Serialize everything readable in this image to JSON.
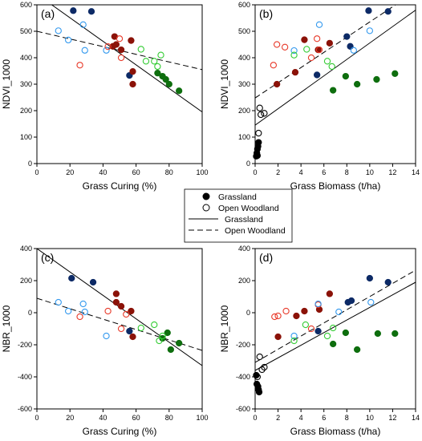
{
  "colors": {
    "black": "#000000",
    "blue": "#3399ee",
    "red": "#e83a2a",
    "green": "#33cc33",
    "darkblue": "#0d2a66",
    "darkred": "#8b1208",
    "darkgreen": "#0e6e0e"
  },
  "legend": {
    "entries": [
      {
        "label": "Grassland",
        "marker": "filled-circle"
      },
      {
        "label": "Open Woodland",
        "marker": "open-circle"
      },
      {
        "label": "Grassland",
        "marker": "solid-line"
      },
      {
        "label": "Open Woodland",
        "marker": "dashed-line"
      }
    ]
  },
  "chart_data": [
    {
      "type": "scatter",
      "panel_label": "(a)",
      "xlabel": "Grass Curing (%)",
      "ylabel": "NDVI_1000",
      "xlim": [
        0,
        100
      ],
      "ylim": [
        0,
        600
      ],
      "xticks": [
        0,
        20,
        40,
        60,
        80,
        100
      ],
      "yticks": [
        0,
        100,
        200,
        300,
        400,
        500,
        600
      ],
      "points": [
        {
          "x": 22,
          "y": 578,
          "color": "darkblue",
          "filled": true
        },
        {
          "x": 33,
          "y": 575,
          "color": "darkblue",
          "filled": true
        },
        {
          "x": 47,
          "y": 480,
          "color": "darkred",
          "filled": true
        },
        {
          "x": 46,
          "y": 443,
          "color": "darkred",
          "filled": true
        },
        {
          "x": 48,
          "y": 450,
          "color": "darkred",
          "filled": true
        },
        {
          "x": 51,
          "y": 430,
          "color": "darkred",
          "filled": true
        },
        {
          "x": 57,
          "y": 465,
          "color": "darkred",
          "filled": true
        },
        {
          "x": 56,
          "y": 333,
          "color": "darkblue",
          "filled": true
        },
        {
          "x": 58,
          "y": 348,
          "color": "darkred",
          "filled": true
        },
        {
          "x": 58,
          "y": 300,
          "color": "darkred",
          "filled": true
        },
        {
          "x": 73,
          "y": 342,
          "color": "darkgreen",
          "filled": true
        },
        {
          "x": 76,
          "y": 330,
          "color": "darkgreen",
          "filled": true
        },
        {
          "x": 78,
          "y": 318,
          "color": "darkgreen",
          "filled": true
        },
        {
          "x": 80,
          "y": 300,
          "color": "darkgreen",
          "filled": true
        },
        {
          "x": 86,
          "y": 275,
          "color": "darkgreen",
          "filled": true
        },
        {
          "x": 13,
          "y": 502,
          "color": "blue",
          "filled": false
        },
        {
          "x": 19,
          "y": 467,
          "color": "blue",
          "filled": false
        },
        {
          "x": 28,
          "y": 525,
          "color": "blue",
          "filled": false
        },
        {
          "x": 29,
          "y": 428,
          "color": "blue",
          "filled": false
        },
        {
          "x": 42,
          "y": 428,
          "color": "blue",
          "filled": false
        },
        {
          "x": 26,
          "y": 372,
          "color": "red",
          "filled": false
        },
        {
          "x": 43,
          "y": 442,
          "color": "red",
          "filled": false
        },
        {
          "x": 50,
          "y": 472,
          "color": "red",
          "filled": false
        },
        {
          "x": 51,
          "y": 400,
          "color": "red",
          "filled": false
        },
        {
          "x": 63,
          "y": 432,
          "color": "green",
          "filled": false
        },
        {
          "x": 66,
          "y": 387,
          "color": "green",
          "filled": false
        },
        {
          "x": 71,
          "y": 387,
          "color": "green",
          "filled": false
        },
        {
          "x": 73,
          "y": 367,
          "color": "green",
          "filled": false
        },
        {
          "x": 75,
          "y": 410,
          "color": "green",
          "filled": false
        }
      ],
      "lines": [
        {
          "style": "solid",
          "x": [
            0,
            100
          ],
          "y": [
            640,
            195
          ]
        },
        {
          "style": "dashed",
          "x": [
            0,
            100
          ],
          "y": [
            500,
            355
          ]
        }
      ]
    },
    {
      "type": "scatter",
      "panel_label": "(b)",
      "xlabel": "Grass Biomass (t/ha)",
      "ylabel": "NDVI_1000",
      "xlim": [
        0,
        14
      ],
      "ylim": [
        0,
        600
      ],
      "xticks": [
        0,
        2,
        4,
        6,
        8,
        10,
        12,
        14
      ],
      "yticks": [
        0,
        100,
        200,
        300,
        400,
        500,
        600
      ],
      "points": [
        {
          "x": 0.1,
          "y": 28,
          "color": "black",
          "filled": true
        },
        {
          "x": 0.15,
          "y": 40,
          "color": "black",
          "filled": true
        },
        {
          "x": 0.2,
          "y": 55,
          "color": "black",
          "filled": true
        },
        {
          "x": 0.25,
          "y": 65,
          "color": "black",
          "filled": true
        },
        {
          "x": 0.3,
          "y": 80,
          "color": "black",
          "filled": true
        },
        {
          "x": 0.2,
          "y": 30,
          "color": "black",
          "filled": true
        },
        {
          "x": 0.3,
          "y": 115,
          "color": "black",
          "filled": false
        },
        {
          "x": 0.5,
          "y": 185,
          "color": "black",
          "filled": false
        },
        {
          "x": 0.8,
          "y": 190,
          "color": "black",
          "filled": false
        },
        {
          "x": 0.4,
          "y": 210,
          "color": "black",
          "filled": false
        },
        {
          "x": 1.9,
          "y": 300,
          "color": "darkred",
          "filled": true
        },
        {
          "x": 3.5,
          "y": 345,
          "color": "darkred",
          "filled": true
        },
        {
          "x": 4.3,
          "y": 468,
          "color": "darkred",
          "filled": true
        },
        {
          "x": 5.5,
          "y": 430,
          "color": "darkred",
          "filled": true
        },
        {
          "x": 6.5,
          "y": 455,
          "color": "darkred",
          "filled": true
        },
        {
          "x": 5.4,
          "y": 335,
          "color": "darkblue",
          "filled": true
        },
        {
          "x": 8.0,
          "y": 480,
          "color": "darkblue",
          "filled": true
        },
        {
          "x": 8.3,
          "y": 443,
          "color": "darkblue",
          "filled": true
        },
        {
          "x": 9.9,
          "y": 578,
          "color": "darkblue",
          "filled": true
        },
        {
          "x": 11.6,
          "y": 575,
          "color": "darkblue",
          "filled": true
        },
        {
          "x": 6.8,
          "y": 277,
          "color": "darkgreen",
          "filled": true
        },
        {
          "x": 7.9,
          "y": 330,
          "color": "darkgreen",
          "filled": true
        },
        {
          "x": 8.9,
          "y": 300,
          "color": "darkgreen",
          "filled": true
        },
        {
          "x": 10.6,
          "y": 318,
          "color": "darkgreen",
          "filled": true
        },
        {
          "x": 12.2,
          "y": 340,
          "color": "darkgreen",
          "filled": true
        },
        {
          "x": 1.6,
          "y": 372,
          "color": "red",
          "filled": false
        },
        {
          "x": 1.9,
          "y": 450,
          "color": "red",
          "filled": false
        },
        {
          "x": 2.6,
          "y": 440,
          "color": "red",
          "filled": false
        },
        {
          "x": 4.9,
          "y": 400,
          "color": "red",
          "filled": false
        },
        {
          "x": 5.6,
          "y": 430,
          "color": "red",
          "filled": false
        },
        {
          "x": 5.4,
          "y": 472,
          "color": "red",
          "filled": false
        },
        {
          "x": 3.4,
          "y": 427,
          "color": "blue",
          "filled": false
        },
        {
          "x": 5.6,
          "y": 525,
          "color": "blue",
          "filled": false
        },
        {
          "x": 8.6,
          "y": 428,
          "color": "blue",
          "filled": false
        },
        {
          "x": 10.0,
          "y": 502,
          "color": "blue",
          "filled": false
        },
        {
          "x": 3.4,
          "y": 410,
          "color": "green",
          "filled": false
        },
        {
          "x": 4.5,
          "y": 432,
          "color": "green",
          "filled": false
        },
        {
          "x": 6.3,
          "y": 387,
          "color": "green",
          "filled": false
        },
        {
          "x": 6.7,
          "y": 367,
          "color": "green",
          "filled": false
        }
      ],
      "lines": [
        {
          "style": "solid",
          "x": [
            0,
            14
          ],
          "y": [
            145,
            580
          ]
        },
        {
          "style": "dashed",
          "x": [
            0,
            14
          ],
          "y": [
            248,
            650
          ]
        }
      ]
    },
    {
      "type": "scatter",
      "panel_label": "(c)",
      "xlabel": "Grass Curing (%)",
      "ylabel": "NBR_1000",
      "xlim": [
        0,
        100
      ],
      "ylim": [
        -600,
        400
      ],
      "xticks": [
        0,
        20,
        40,
        60,
        80,
        100
      ],
      "yticks": [
        -600,
        -400,
        -200,
        0,
        200,
        400
      ],
      "points": [
        {
          "x": 21,
          "y": 215,
          "color": "darkblue",
          "filled": true
        },
        {
          "x": 34,
          "y": 190,
          "color": "darkblue",
          "filled": true
        },
        {
          "x": 48,
          "y": 118,
          "color": "darkred",
          "filled": true
        },
        {
          "x": 48,
          "y": 65,
          "color": "darkred",
          "filled": true
        },
        {
          "x": 51,
          "y": 40,
          "color": "darkred",
          "filled": true
        },
        {
          "x": 57,
          "y": 10,
          "color": "darkred",
          "filled": true
        },
        {
          "x": 56,
          "y": -115,
          "color": "darkblue",
          "filled": true
        },
        {
          "x": 58,
          "y": -150,
          "color": "darkred",
          "filled": true
        },
        {
          "x": 76,
          "y": -160,
          "color": "darkgreen",
          "filled": true
        },
        {
          "x": 79,
          "y": -125,
          "color": "darkgreen",
          "filled": true
        },
        {
          "x": 81,
          "y": -230,
          "color": "darkgreen",
          "filled": true
        },
        {
          "x": 86,
          "y": -190,
          "color": "darkgreen",
          "filled": true
        },
        {
          "x": 13,
          "y": 65,
          "color": "blue",
          "filled": false
        },
        {
          "x": 19,
          "y": 10,
          "color": "blue",
          "filled": false
        },
        {
          "x": 28,
          "y": 55,
          "color": "blue",
          "filled": false
        },
        {
          "x": 29,
          "y": 5,
          "color": "blue",
          "filled": false
        },
        {
          "x": 42,
          "y": -145,
          "color": "blue",
          "filled": false
        },
        {
          "x": 26,
          "y": -25,
          "color": "red",
          "filled": false
        },
        {
          "x": 43,
          "y": 10,
          "color": "red",
          "filled": false
        },
        {
          "x": 51,
          "y": -100,
          "color": "red",
          "filled": false
        },
        {
          "x": 54,
          "y": -10,
          "color": "red",
          "filled": false
        },
        {
          "x": 63,
          "y": -95,
          "color": "green",
          "filled": false
        },
        {
          "x": 71,
          "y": -75,
          "color": "green",
          "filled": false
        },
        {
          "x": 74,
          "y": -175,
          "color": "green",
          "filled": false
        },
        {
          "x": 76,
          "y": -145,
          "color": "green",
          "filled": false
        }
      ],
      "lines": [
        {
          "style": "solid",
          "x": [
            0,
            100
          ],
          "y": [
            400,
            -330
          ]
        },
        {
          "style": "dashed",
          "x": [
            0,
            100
          ],
          "y": [
            90,
            -235
          ]
        }
      ]
    },
    {
      "type": "scatter",
      "panel_label": "(d)",
      "xlabel": "Grass Biomass (t/ha)",
      "ylabel": "NBR_1000",
      "xlim": [
        0,
        14
      ],
      "ylim": [
        -600,
        400
      ],
      "xticks": [
        0,
        2,
        4,
        6,
        8,
        10,
        12,
        14
      ],
      "yticks": [
        -600,
        -400,
        -200,
        0,
        200,
        400
      ],
      "points": [
        {
          "x": 0.1,
          "y": -390,
          "color": "black",
          "filled": true
        },
        {
          "x": 0.15,
          "y": -445,
          "color": "black",
          "filled": true
        },
        {
          "x": 0.25,
          "y": -460,
          "color": "black",
          "filled": true
        },
        {
          "x": 0.3,
          "y": -480,
          "color": "black",
          "filled": true
        },
        {
          "x": 0.35,
          "y": -495,
          "color": "black",
          "filled": true
        },
        {
          "x": 0.2,
          "y": -400,
          "color": "black",
          "filled": false
        },
        {
          "x": 0.4,
          "y": -275,
          "color": "black",
          "filled": false
        },
        {
          "x": 0.6,
          "y": -355,
          "color": "black",
          "filled": false
        },
        {
          "x": 0.8,
          "y": -340,
          "color": "black",
          "filled": false
        },
        {
          "x": 2.0,
          "y": -150,
          "color": "darkred",
          "filled": true
        },
        {
          "x": 3.6,
          "y": -20,
          "color": "darkred",
          "filled": true
        },
        {
          "x": 4.3,
          "y": 10,
          "color": "darkred",
          "filled": true
        },
        {
          "x": 5.6,
          "y": 20,
          "color": "darkred",
          "filled": true
        },
        {
          "x": 6.5,
          "y": 118,
          "color": "darkred",
          "filled": true
        },
        {
          "x": 5.5,
          "y": -115,
          "color": "darkblue",
          "filled": true
        },
        {
          "x": 8.1,
          "y": 65,
          "color": "darkblue",
          "filled": true
        },
        {
          "x": 8.4,
          "y": 75,
          "color": "darkblue",
          "filled": true
        },
        {
          "x": 10.0,
          "y": 215,
          "color": "darkblue",
          "filled": true
        },
        {
          "x": 11.6,
          "y": 190,
          "color": "darkblue",
          "filled": true
        },
        {
          "x": 6.8,
          "y": -195,
          "color": "darkgreen",
          "filled": true
        },
        {
          "x": 7.9,
          "y": -125,
          "color": "darkgreen",
          "filled": true
        },
        {
          "x": 8.9,
          "y": -230,
          "color": "darkgreen",
          "filled": true
        },
        {
          "x": 10.7,
          "y": -130,
          "color": "darkgreen",
          "filled": true
        },
        {
          "x": 12.2,
          "y": -130,
          "color": "darkgreen",
          "filled": true
        },
        {
          "x": 1.7,
          "y": -25,
          "color": "red",
          "filled": false
        },
        {
          "x": 2.0,
          "y": -20,
          "color": "red",
          "filled": false
        },
        {
          "x": 2.7,
          "y": 10,
          "color": "red",
          "filled": false
        },
        {
          "x": 4.9,
          "y": -100,
          "color": "red",
          "filled": false
        },
        {
          "x": 5.5,
          "y": 50,
          "color": "red",
          "filled": false
        },
        {
          "x": 3.4,
          "y": -145,
          "color": "blue",
          "filled": false
        },
        {
          "x": 5.5,
          "y": 55,
          "color": "blue",
          "filled": false
        },
        {
          "x": 7.3,
          "y": 5,
          "color": "blue",
          "filled": false
        },
        {
          "x": 10.1,
          "y": 65,
          "color": "blue",
          "filled": false
        },
        {
          "x": 3.4,
          "y": -175,
          "color": "green",
          "filled": false
        },
        {
          "x": 4.4,
          "y": -75,
          "color": "green",
          "filled": false
        },
        {
          "x": 6.3,
          "y": -145,
          "color": "green",
          "filled": false
        },
        {
          "x": 6.8,
          "y": -95,
          "color": "green",
          "filled": false
        }
      ],
      "lines": [
        {
          "style": "solid",
          "x": [
            0,
            14
          ],
          "y": [
            -360,
            190
          ]
        },
        {
          "style": "dashed",
          "x": [
            0,
            14
          ],
          "y": [
            -310,
            265
          ]
        }
      ]
    }
  ]
}
